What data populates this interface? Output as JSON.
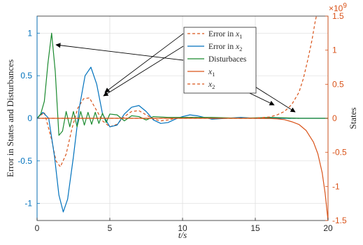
{
  "chart_data": {
    "type": "line",
    "title": "",
    "xlabel": "t/s",
    "ylabel_left": "Error in States and Disturbances",
    "ylabel_right": "States",
    "right_axis_exponent": "×10",
    "right_axis_exponent_power": "9",
    "xlim": [
      0,
      20
    ],
    "ylim_left": [
      -1.2,
      1.2
    ],
    "ylim_right": [
      -1.5,
      1.5
    ],
    "grid": true,
    "legend_placement": "top-center",
    "xticks": [
      {
        "value": 0,
        "label": "0"
      },
      {
        "value": 5,
        "label": "5"
      },
      {
        "value": 10,
        "label": "10"
      },
      {
        "value": 15,
        "label": "15"
      },
      {
        "value": 20,
        "label": "20"
      }
    ],
    "yticks_left": [
      {
        "value": 1,
        "label": "1"
      },
      {
        "value": 0.5,
        "label": "0.5"
      },
      {
        "value": 0,
        "label": "0"
      },
      {
        "value": -0.5,
        "label": "-0.5"
      },
      {
        "value": -1,
        "label": "-1"
      }
    ],
    "yticks_right": [
      {
        "value": 1.5,
        "label": "1.5"
      },
      {
        "value": 1,
        "label": "1"
      },
      {
        "value": 0.5,
        "label": "0.5"
      },
      {
        "value": 0,
        "label": "0"
      },
      {
        "value": -0.5,
        "label": "-0.5"
      },
      {
        "value": -1,
        "label": "-1"
      },
      {
        "value": -1.5,
        "label": "-1.5"
      }
    ],
    "legend": [
      {
        "label": "Error in ",
        "var": "x",
        "sub": "1",
        "color": "#D95319",
        "dash": true
      },
      {
        "label": "Error in ",
        "var": "x",
        "sub": "2",
        "color": "#0072BD",
        "dash": false
      },
      {
        "label": "Disturbaces",
        "var": "",
        "sub": "",
        "color": "#1B8A2F",
        "dash": false
      },
      {
        "label": "",
        "var": "x",
        "sub": "1",
        "color": "#D95319",
        "dash": false
      },
      {
        "label": "",
        "var": "x",
        "sub": "2",
        "color": "#D95319",
        "dash": true
      }
    ],
    "series": [
      {
        "name": "Error in x1",
        "axis": "left",
        "color": "#D95319",
        "dash": true,
        "x": [
          0,
          0.5,
          1.0,
          1.3,
          1.6,
          2.0,
          2.4,
          2.8,
          3.2,
          3.6,
          4.0,
          4.5,
          5.0,
          5.5,
          6.0,
          6.5,
          7.0,
          7.5,
          8.0,
          8.5,
          9.0,
          9.5,
          10,
          11,
          12,
          13,
          14,
          15,
          16,
          17,
          18
        ],
        "y": [
          0,
          0.07,
          -0.25,
          -0.5,
          -0.57,
          -0.42,
          -0.12,
          0.12,
          0.23,
          0.24,
          0.12,
          -0.03,
          -0.1,
          -0.07,
          0.02,
          0.08,
          0.09,
          0.04,
          -0.01,
          -0.03,
          -0.02,
          0.0,
          0.01,
          0.01,
          0.0,
          0.0,
          0.0,
          0.0,
          0.0,
          0.0,
          0.0
        ]
      },
      {
        "name": "Error in x2",
        "axis": "left",
        "color": "#0072BD",
        "dash": false,
        "x": [
          0,
          0.4,
          0.8,
          1.2,
          1.5,
          1.8,
          2.1,
          2.5,
          2.9,
          3.3,
          3.7,
          4.1,
          4.5,
          5.0,
          5.5,
          6.0,
          6.5,
          7.0,
          7.5,
          8.0,
          8.5,
          9.0,
          9.5,
          10,
          10.5,
          11,
          11.5,
          12,
          13,
          14,
          15,
          16,
          17,
          18,
          19,
          20
        ],
        "y": [
          0,
          0.07,
          0.0,
          -0.45,
          -0.9,
          -1.1,
          -0.95,
          -0.45,
          0.12,
          0.5,
          0.6,
          0.4,
          0.05,
          -0.1,
          -0.08,
          0.05,
          0.13,
          0.15,
          0.08,
          -0.02,
          -0.06,
          -0.05,
          -0.01,
          0.02,
          0.04,
          0.03,
          0.01,
          -0.01,
          0.0,
          0.01,
          0.0,
          0.0,
          0.0,
          0.0,
          0.0,
          0.0
        ]
      },
      {
        "name": "Disturbaces",
        "axis": "left",
        "color": "#1B8A2F",
        "dash": false,
        "x": [
          0,
          0.25,
          0.5,
          0.75,
          1.0,
          1.25,
          1.5,
          1.75,
          2.0,
          2.25,
          2.5,
          2.75,
          3.0,
          3.25,
          3.5,
          3.75,
          4.0,
          4.25,
          4.5,
          4.75,
          5.0,
          5.5,
          6.0,
          6.5,
          7.0,
          7.5,
          8.0,
          9.0,
          10,
          12,
          14,
          16,
          18,
          20
        ],
        "y": [
          0,
          0.05,
          0.2,
          0.65,
          1.0,
          0.55,
          -0.2,
          -0.15,
          0.08,
          -0.1,
          0.08,
          -0.1,
          0.08,
          -0.08,
          0.07,
          -0.07,
          0.07,
          -0.06,
          0.06,
          -0.05,
          0.05,
          0.04,
          -0.03,
          0.03,
          0.02,
          -0.02,
          0.02,
          0.01,
          0.01,
          0.01,
          0.0,
          0.01,
          0.0,
          0.0
        ]
      },
      {
        "name": "x1",
        "axis": "right",
        "color": "#D95319",
        "dash": false,
        "x": [
          0,
          4,
          8,
          12,
          15,
          16,
          16.5,
          17,
          17.5,
          18,
          18.5,
          19,
          19.3,
          19.6,
          19.8,
          20
        ],
        "y": [
          0,
          0,
          0,
          0,
          0,
          -0.003,
          -0.008,
          -0.02,
          -0.05,
          -0.09,
          -0.18,
          -0.35,
          -0.52,
          -0.8,
          -1.1,
          -1.5
        ]
      },
      {
        "name": "x2",
        "axis": "right",
        "color": "#D95319",
        "dash": true,
        "x": [
          0,
          4,
          8,
          12,
          15,
          16,
          16.5,
          17,
          17.5,
          18,
          18.3,
          18.6,
          18.9,
          19.1,
          19.3
        ],
        "y": [
          0,
          0,
          0,
          0,
          0.002,
          0.02,
          0.05,
          0.1,
          0.2,
          0.38,
          0.58,
          0.85,
          1.15,
          1.4,
          1.6
        ]
      }
    ]
  }
}
